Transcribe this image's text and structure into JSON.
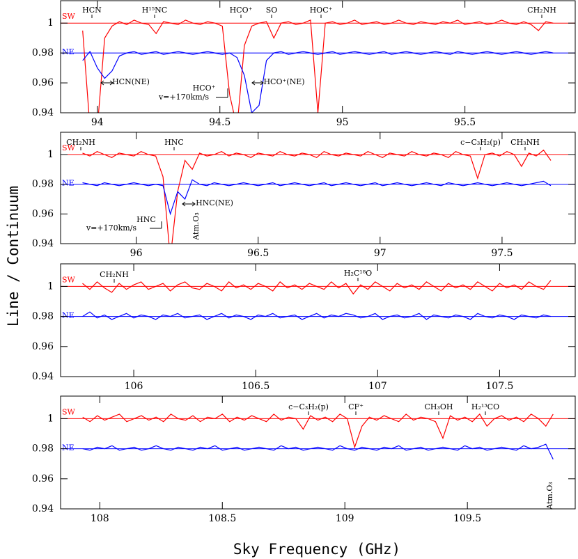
{
  "x_label": "Sky Frequency (GHz)",
  "y_label": "Line / Continuum",
  "chart_data": [
    {
      "type": "line",
      "xlim": [
        93.85,
        95.95
      ],
      "ylim": [
        0.94,
        1.015
      ],
      "xticks": [
        94,
        94.5,
        95,
        95.5
      ],
      "yticks": [
        0.94,
        0.96,
        0.98,
        1
      ],
      "x": [
        93.94,
        93.97,
        94.0,
        94.03,
        94.06,
        94.09,
        94.12,
        94.15,
        94.18,
        94.21,
        94.24,
        94.27,
        94.3,
        94.33,
        94.36,
        94.39,
        94.42,
        94.45,
        94.48,
        94.51,
        94.54,
        94.57,
        94.6,
        94.63,
        94.66,
        94.69,
        94.72,
        94.75,
        94.78,
        94.81,
        94.84,
        94.87,
        94.9,
        94.93,
        94.96,
        94.99,
        95.02,
        95.05,
        95.08,
        95.11,
        95.14,
        95.17,
        95.2,
        95.23,
        95.26,
        95.29,
        95.32,
        95.35,
        95.38,
        95.41,
        95.44,
        95.47,
        95.5,
        95.53,
        95.56,
        95.59,
        95.62,
        95.65,
        95.68,
        95.71,
        95.74,
        95.77,
        95.8,
        95.83,
        95.86
      ],
      "series": [
        {
          "name": "SW",
          "color": "#ff0000",
          "level": 1,
          "values": [
            0.995,
            0.93,
            0.93,
            0.99,
            0.998,
            1.001,
            0.999,
            1.002,
            1.0,
            0.999,
            0.993,
            1.001,
            1.0,
            0.999,
            1.002,
            1.0,
            0.999,
            1.001,
            1.0,
            0.998,
            0.952,
            0.93,
            0.985,
            0.998,
            1.0,
            1.001,
            0.99,
            1.0,
            1.001,
            0.999,
            1.0,
            1.002,
            0.94,
            1.0,
            1.001,
            0.999,
            1.0,
            1.002,
            0.999,
            1.0,
            1.001,
            0.999,
            1.0,
            1.002,
            1.0,
            0.999,
            1.001,
            1.0,
            0.999,
            1.001,
            1.0,
            1.002,
            0.999,
            1.0,
            1.001,
            0.999,
            1.0,
            1.002,
            1.0,
            0.999,
            1.001,
            0.999,
            0.995,
            1.001,
            1.0
          ]
        },
        {
          "name": "NE",
          "color": "#0000ff",
          "level": 0.98,
          "values": [
            0.975,
            0.981,
            0.97,
            0.963,
            0.968,
            0.978,
            0.98,
            0.981,
            0.979,
            0.98,
            0.981,
            0.979,
            0.98,
            0.981,
            0.98,
            0.979,
            0.98,
            0.981,
            0.98,
            0.979,
            0.98,
            0.977,
            0.965,
            0.94,
            0.945,
            0.975,
            0.98,
            0.981,
            0.979,
            0.98,
            0.981,
            0.98,
            0.979,
            0.98,
            0.981,
            0.979,
            0.98,
            0.981,
            0.98,
            0.979,
            0.98,
            0.981,
            0.979,
            0.98,
            0.981,
            0.98,
            0.979,
            0.98,
            0.981,
            0.98,
            0.979,
            0.981,
            0.98,
            0.979,
            0.98,
            0.981,
            0.98,
            0.979,
            0.98,
            0.981,
            0.98,
            0.979,
            0.98,
            0.981,
            0.98
          ]
        }
      ],
      "annotations": [
        "HCN",
        "H¹⁵NC",
        "HCO⁺",
        "SO",
        "HOC⁺",
        "CH₂NH",
        "HCN(NE)",
        "HCO⁺(NE)",
        "HCO⁺",
        "v=+170km/s"
      ]
    },
    {
      "type": "line",
      "xlim": [
        95.69,
        97.8
      ],
      "ylim": [
        0.94,
        1.015
      ],
      "xticks": [
        96,
        96.5,
        97,
        97.5
      ],
      "yticks": [
        0.94,
        0.96,
        0.98,
        1
      ],
      "x": [
        95.78,
        95.81,
        95.84,
        95.87,
        95.9,
        95.93,
        95.96,
        95.99,
        96.02,
        96.05,
        96.08,
        96.11,
        96.14,
        96.17,
        96.2,
        96.23,
        96.26,
        96.29,
        96.32,
        96.35,
        96.38,
        96.41,
        96.44,
        96.47,
        96.5,
        96.53,
        96.56,
        96.59,
        96.62,
        96.65,
        96.68,
        96.71,
        96.74,
        96.77,
        96.8,
        96.83,
        96.86,
        96.89,
        96.92,
        96.95,
        96.98,
        97.01,
        97.04,
        97.07,
        97.1,
        97.13,
        97.16,
        97.19,
        97.22,
        97.25,
        97.28,
        97.31,
        97.34,
        97.37,
        97.4,
        97.43,
        97.46,
        97.49,
        97.52,
        97.55,
        97.58,
        97.61,
        97.64,
        97.67,
        97.7
      ],
      "series": [
        {
          "name": "SW",
          "color": "#ff0000",
          "level": 1,
          "values": [
            1.001,
            0.999,
            1.002,
            1.0,
            0.998,
            1.001,
            1.0,
            0.999,
            1.002,
            1.0,
            0.999,
            0.985,
            0.93,
            0.975,
            0.996,
            0.99,
            1.001,
            0.999,
            1.0,
            1.002,
            0.999,
            1.001,
            1.0,
            0.998,
            1.001,
            1.0,
            0.999,
            1.002,
            1.0,
            0.999,
            1.001,
            1.0,
            0.998,
            1.002,
            1.0,
            0.999,
            1.001,
            1.0,
            0.999,
            1.002,
            1.0,
            0.998,
            1.001,
            1.0,
            0.999,
            1.002,
            1.0,
            0.999,
            1.001,
            1.0,
            0.998,
            1.002,
            1.0,
            0.999,
            0.984,
            1.0,
            1.001,
            0.999,
            1.002,
            1.0,
            0.992,
            1.001,
            0.999,
            1.003,
            0.996
          ]
        },
        {
          "name": "NE",
          "color": "#0000ff",
          "level": 0.98,
          "values": [
            0.981,
            0.98,
            0.979,
            0.981,
            0.98,
            0.979,
            0.98,
            0.981,
            0.98,
            0.979,
            0.98,
            0.979,
            0.96,
            0.975,
            0.97,
            0.983,
            0.98,
            0.979,
            0.981,
            0.98,
            0.979,
            0.98,
            0.981,
            0.98,
            0.979,
            0.98,
            0.981,
            0.979,
            0.98,
            0.981,
            0.98,
            0.979,
            0.98,
            0.981,
            0.979,
            0.98,
            0.981,
            0.98,
            0.979,
            0.98,
            0.981,
            0.979,
            0.98,
            0.981,
            0.98,
            0.979,
            0.98,
            0.981,
            0.98,
            0.979,
            0.981,
            0.98,
            0.979,
            0.98,
            0.981,
            0.98,
            0.979,
            0.98,
            0.981,
            0.98,
            0.979,
            0.98,
            0.981,
            0.982,
            0.979
          ]
        }
      ],
      "annotations": [
        "CH₂NH",
        "HNC",
        "c−C₃H₂(p)",
        "CH₃NH",
        "HNC(NE)",
        "HNC",
        "v=+170km/s",
        "Atm.O₃"
      ]
    },
    {
      "type": "line",
      "xlim": [
        105.7,
        107.81
      ],
      "ylim": [
        0.94,
        1.015
      ],
      "xticks": [
        106,
        106.5,
        107,
        107.5
      ],
      "yticks": [
        0.94,
        0.96,
        0.98,
        1
      ],
      "x": [
        105.79,
        105.82,
        105.85,
        105.88,
        105.91,
        105.94,
        105.97,
        106.0,
        106.03,
        106.06,
        106.09,
        106.12,
        106.15,
        106.18,
        106.21,
        106.24,
        106.27,
        106.3,
        106.33,
        106.36,
        106.39,
        106.42,
        106.45,
        106.48,
        106.51,
        106.54,
        106.57,
        106.6,
        106.63,
        106.66,
        106.69,
        106.72,
        106.75,
        106.78,
        106.81,
        106.84,
        106.87,
        106.9,
        106.93,
        106.96,
        106.99,
        107.02,
        107.05,
        107.08,
        107.11,
        107.14,
        107.17,
        107.2,
        107.23,
        107.26,
        107.29,
        107.32,
        107.35,
        107.38,
        107.41,
        107.44,
        107.47,
        107.5,
        107.53,
        107.56,
        107.59,
        107.62,
        107.65,
        107.68,
        107.71
      ],
      "series": [
        {
          "name": "SW",
          "color": "#ff0000",
          "level": 1,
          "values": [
            1.002,
            0.998,
            1.003,
            0.999,
            0.996,
            1.002,
            0.998,
            1.001,
            1.003,
            0.998,
            1.0,
            1.002,
            0.997,
            1.001,
            1.003,
            0.999,
            0.998,
            1.002,
            1.0,
            0.997,
            1.003,
            0.999,
            1.001,
            0.998,
            1.002,
            1.0,
            0.997,
            1.003,
            0.999,
            1.001,
            0.998,
            1.002,
            1.0,
            0.998,
            1.003,
            0.999,
            1.002,
            0.995,
            1.001,
            0.998,
            1.003,
            1.0,
            0.997,
            1.002,
            0.999,
            1.001,
            0.998,
            1.003,
            1.0,
            0.997,
            1.002,
            0.999,
            1.001,
            0.998,
            1.003,
            1.0,
            0.997,
            1.002,
            0.999,
            1.001,
            0.998,
            1.003,
            1.0,
            0.998,
            1.004
          ]
        },
        {
          "name": "NE",
          "color": "#0000ff",
          "level": 0.98,
          "values": [
            0.98,
            0.983,
            0.979,
            0.981,
            0.978,
            0.98,
            0.982,
            0.979,
            0.981,
            0.98,
            0.978,
            0.981,
            0.98,
            0.982,
            0.979,
            0.98,
            0.981,
            0.978,
            0.98,
            0.982,
            0.979,
            0.981,
            0.98,
            0.978,
            0.981,
            0.98,
            0.982,
            0.979,
            0.98,
            0.981,
            0.978,
            0.98,
            0.982,
            0.979,
            0.981,
            0.98,
            0.982,
            0.981,
            0.979,
            0.98,
            0.982,
            0.978,
            0.98,
            0.981,
            0.979,
            0.98,
            0.982,
            0.978,
            0.981,
            0.98,
            0.979,
            0.981,
            0.98,
            0.978,
            0.982,
            0.98,
            0.979,
            0.981,
            0.98,
            0.978,
            0.981,
            0.98,
            0.979,
            0.981,
            0.98
          ]
        }
      ],
      "annotations": [
        "CH₂NH",
        "H₂C¹⁸O"
      ]
    },
    {
      "type": "line",
      "xlim": [
        107.84,
        109.94
      ],
      "ylim": [
        0.94,
        1.015
      ],
      "xticks": [
        108,
        108.5,
        109,
        109.5
      ],
      "yticks": [
        0.94,
        0.96,
        0.98,
        1
      ],
      "x": [
        107.93,
        107.96,
        107.99,
        108.02,
        108.05,
        108.08,
        108.11,
        108.14,
        108.17,
        108.2,
        108.23,
        108.26,
        108.29,
        108.32,
        108.35,
        108.38,
        108.41,
        108.44,
        108.47,
        108.5,
        108.53,
        108.56,
        108.59,
        108.62,
        108.65,
        108.68,
        108.71,
        108.74,
        108.77,
        108.8,
        108.83,
        108.86,
        108.89,
        108.92,
        108.95,
        108.98,
        109.01,
        109.04,
        109.07,
        109.1,
        109.13,
        109.16,
        109.19,
        109.22,
        109.25,
        109.28,
        109.31,
        109.34,
        109.37,
        109.4,
        109.43,
        109.46,
        109.49,
        109.52,
        109.55,
        109.58,
        109.61,
        109.64,
        109.67,
        109.7,
        109.73,
        109.76,
        109.79,
        109.82,
        109.85
      ],
      "series": [
        {
          "name": "SW",
          "color": "#ff0000",
          "level": 1,
          "values": [
            1.001,
            0.998,
            1.002,
            0.999,
            1.001,
            1.003,
            0.998,
            1.0,
            1.002,
            0.999,
            1.001,
            0.998,
            1.003,
            1.0,
            0.999,
            1.002,
            0.998,
            1.001,
            1.0,
            1.003,
            0.998,
            1.001,
            0.999,
            1.002,
            1.0,
            0.998,
            1.003,
            0.999,
            1.001,
            1.0,
            0.993,
            1.002,
            0.999,
            1.001,
            0.998,
            1.003,
            1.0,
            0.981,
            0.995,
            1.001,
            0.999,
            1.002,
            1.0,
            0.998,
            1.003,
            0.999,
            1.001,
            1.0,
            0.998,
            0.987,
            1.002,
            0.999,
            1.001,
            0.998,
            1.003,
            0.995,
            1.0,
            1.002,
            0.999,
            1.001,
            0.998,
            1.003,
            1.0,
            0.995,
            1.003
          ]
        },
        {
          "name": "NE",
          "color": "#0000ff",
          "level": 0.98,
          "values": [
            0.98,
            0.979,
            0.981,
            0.98,
            0.982,
            0.979,
            0.98,
            0.981,
            0.979,
            0.98,
            0.982,
            0.98,
            0.979,
            0.981,
            0.98,
            0.979,
            0.981,
            0.98,
            0.982,
            0.979,
            0.98,
            0.981,
            0.979,
            0.98,
            0.981,
            0.98,
            0.979,
            0.982,
            0.98,
            0.981,
            0.979,
            0.98,
            0.981,
            0.98,
            0.979,
            0.982,
            0.98,
            0.979,
            0.981,
            0.98,
            0.979,
            0.981,
            0.98,
            0.982,
            0.979,
            0.98,
            0.981,
            0.979,
            0.98,
            0.981,
            0.98,
            0.979,
            0.982,
            0.98,
            0.981,
            0.979,
            0.98,
            0.981,
            0.98,
            0.979,
            0.982,
            0.98,
            0.981,
            0.983,
            0.973
          ]
        }
      ],
      "annotations": [
        "c−C₃H₂(p)",
        "CF⁺",
        "CH₃OH",
        "H₂¹³CO",
        "Atm.O₃"
      ]
    }
  ]
}
